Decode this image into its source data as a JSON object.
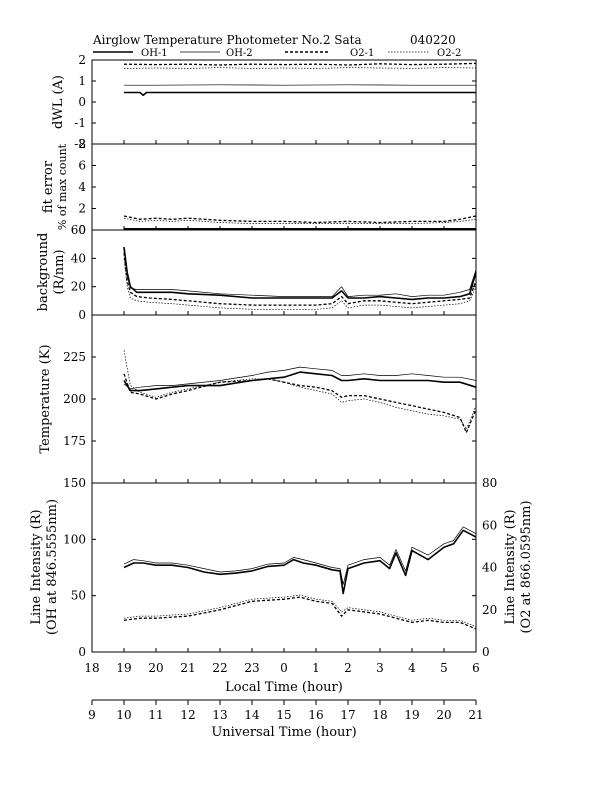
{
  "header": {
    "title": "Airglow Temperature Photometer No.2 Sata",
    "date_code": "040220"
  },
  "legend": [
    {
      "label": "OH-1",
      "style": "solid-bold"
    },
    {
      "label": "OH-2",
      "style": "solid-thin"
    },
    {
      "label": "O2-1",
      "style": "dashed-bold"
    },
    {
      "label": "O2-2",
      "style": "dotted-thin"
    }
  ],
  "chart_data": {
    "type": "line",
    "x_unit": "local time (hour), 19 = 19:00 LT, 24 = 0 LT",
    "x_axis_local": {
      "label": "Local Time (hour)",
      "range": [
        18,
        30
      ],
      "ticks": [
        "18",
        "19",
        "20",
        "21",
        "22",
        "23",
        "0",
        "1",
        "2",
        "3",
        "4",
        "5",
        "6"
      ]
    },
    "x_axis_universal": {
      "label": "Universal Time (hour)",
      "range": [
        9,
        21
      ],
      "ticks": [
        "9",
        "10",
        "11",
        "12",
        "13",
        "14",
        "15",
        "16",
        "17",
        "18",
        "19",
        "20",
        "21"
      ]
    },
    "panels": [
      {
        "id": "dwl",
        "ylabel": "dWL (A)",
        "ylim": [
          -2,
          2
        ],
        "yticks": [
          "2",
          "1",
          "0",
          "-1",
          "-2"
        ],
        "yticks_values": [
          2,
          1,
          0,
          -1,
          -2
        ],
        "series": [
          {
            "name": "OH-1",
            "x": [
              19,
              19.5,
              19.6,
              19.7,
              22,
              25,
              28,
              30
            ],
            "y": [
              0.45,
              0.45,
              0.32,
              0.45,
              0.45,
              0.45,
              0.45,
              0.45
            ]
          },
          {
            "name": "OH-2",
            "x": [
              19,
              20,
              22,
              24,
              26,
              28,
              30
            ],
            "y": [
              0.8,
              0.8,
              0.82,
              0.8,
              0.82,
              0.8,
              0.8
            ]
          },
          {
            "name": "O2-1",
            "x": [
              19,
              20,
              21,
              22,
              23,
              24,
              25,
              26,
              27,
              28,
              29,
              30
            ],
            "y": [
              1.8,
              1.78,
              1.8,
              1.76,
              1.8,
              1.78,
              1.8,
              1.76,
              1.82,
              1.78,
              1.8,
              1.84
            ]
          },
          {
            "name": "O2-2",
            "x": [
              19,
              20,
              21,
              22,
              23,
              24,
              25,
              26,
              27,
              28,
              29,
              30
            ],
            "y": [
              1.6,
              1.62,
              1.6,
              1.64,
              1.6,
              1.62,
              1.6,
              1.64,
              1.62,
              1.6,
              1.64,
              1.62
            ]
          }
        ]
      },
      {
        "id": "fit_error",
        "ylabel": "fit error",
        "ylabel2": "% of max count",
        "ylim": [
          0,
          8
        ],
        "yticks": [
          "8",
          "6",
          "4",
          "2",
          "0"
        ],
        "yticks_values": [
          8,
          6,
          4,
          2,
          0
        ],
        "series": [
          {
            "name": "OH-1",
            "x": [
              19,
              30
            ],
            "y": [
              0.1,
              0.1
            ]
          },
          {
            "name": "OH-2",
            "x": [
              19,
              30
            ],
            "y": [
              0.15,
              0.15
            ]
          },
          {
            "name": "O2-1",
            "x": [
              19,
              19.5,
              20,
              20.5,
              21,
              22,
              23,
              24,
              25,
              26,
              27,
              28,
              29,
              29.5,
              30
            ],
            "y": [
              1.3,
              1.0,
              1.1,
              1.0,
              1.1,
              0.9,
              0.8,
              0.8,
              0.7,
              0.8,
              0.7,
              0.8,
              0.8,
              1.0,
              1.3
            ]
          },
          {
            "name": "O2-2",
            "x": [
              19,
              19.5,
              20,
              20.5,
              21,
              22,
              23,
              24,
              25,
              26,
              27,
              28,
              29,
              29.5,
              30
            ],
            "y": [
              1.1,
              0.8,
              0.9,
              0.8,
              0.9,
              0.7,
              0.6,
              0.6,
              0.6,
              0.6,
              0.6,
              0.6,
              0.7,
              0.8,
              1.0
            ]
          }
        ]
      },
      {
        "id": "background",
        "ylabel": "background",
        "ylabel2": "(R/nm)",
        "ylim": [
          0,
          60
        ],
        "yticks": [
          "60",
          "40",
          "20",
          "0"
        ],
        "yticks_values": [
          60,
          40,
          20,
          0
        ],
        "series": [
          {
            "name": "OH-1",
            "x": [
              19,
              19.1,
              19.2,
              19.4,
              19.8,
              20.5,
              21,
              22,
              23,
              24,
              25,
              25.5,
              25.8,
              26,
              26.5,
              27,
              27.5,
              28,
              28.5,
              29,
              29.5,
              29.8,
              30
            ],
            "y": [
              48,
              30,
              20,
              16,
              16,
              16,
              15,
              14,
              12,
              12,
              12,
              12,
              17,
              12,
              12,
              13,
              12,
              11,
              12,
              12,
              13,
              15,
              30
            ]
          },
          {
            "name": "OH-2",
            "x": [
              19,
              19.1,
              19.2,
              19.4,
              19.8,
              20.5,
              21,
              22,
              23,
              24,
              25,
              25.5,
              25.8,
              26,
              26.5,
              27,
              27.5,
              28,
              28.5,
              29,
              29.5,
              29.8,
              30
            ],
            "y": [
              46,
              28,
              19,
              18,
              18,
              18,
              17,
              15,
              14,
              13,
              13,
              13,
              20,
              13,
              14,
              14,
              15,
              13,
              14,
              14,
              16,
              18,
              32
            ]
          },
          {
            "name": "O2-1",
            "x": [
              19,
              19.1,
              19.2,
              19.4,
              19.8,
              20.5,
              21,
              22,
              23,
              24,
              25,
              25.5,
              25.8,
              26,
              26.5,
              27,
              27.5,
              28,
              28.5,
              29,
              29.5,
              29.8,
              30
            ],
            "y": [
              44,
              24,
              16,
              13,
              12,
              11,
              10,
              8,
              7,
              7,
              7,
              8,
              13,
              8,
              10,
              10,
              9,
              8,
              9,
              10,
              11,
              12,
              24
            ]
          },
          {
            "name": "O2-2",
            "x": [
              19,
              19.1,
              19.2,
              19.4,
              19.8,
              20.5,
              21,
              22,
              23,
              24,
              25,
              25.5,
              25.8,
              26,
              26.5,
              27,
              27.5,
              28,
              28.5,
              29,
              29.5,
              29.8,
              30
            ],
            "y": [
              40,
              20,
              12,
              10,
              9,
              8,
              7,
              5,
              4,
              4,
              4,
              5,
              10,
              5,
              7,
              7,
              6,
              5,
              6,
              7,
              8,
              10,
              20
            ]
          }
        ]
      },
      {
        "id": "temperature",
        "ylabel": "Temperature (K)",
        "ylim": [
          150,
          250
        ],
        "yticks": [
          "225",
          "200",
          "175"
        ],
        "yticks_values": [
          225,
          200,
          175
        ],
        "series": [
          {
            "name": "OH-1",
            "x": [
              19,
              19.2,
              19.5,
              20,
              20.5,
              21,
              22,
              23,
              23.5,
              24,
              24.5,
              25,
              25.5,
              25.8,
              26,
              26.5,
              27,
              27.5,
              28,
              28.5,
              29,
              29.5,
              30
            ],
            "y": [
              211,
              205,
              205,
              206,
              207,
              208,
              208,
              211,
              212,
              213,
              216,
              215,
              214,
              211,
              211,
              212,
              211,
              211,
              211,
              211,
              210,
              210,
              207
            ]
          },
          {
            "name": "OH-2",
            "x": [
              19,
              19.2,
              19.5,
              20,
              20.5,
              21,
              22,
              23,
              23.5,
              24,
              24.5,
              25,
              25.5,
              25.8,
              26,
              26.5,
              27,
              27.5,
              28,
              28.5,
              29,
              29.5,
              30
            ],
            "y": [
              209,
              206,
              207,
              208,
              208,
              209,
              211,
              214,
              216,
              217,
              219,
              218,
              217,
              214,
              214,
              215,
              214,
              214,
              215,
              214,
              213,
              213,
              211
            ]
          },
          {
            "name": "O2-1",
            "x": [
              19,
              19.2,
              19.5,
              20,
              20.5,
              21,
              22,
              23,
              23.5,
              24,
              24.5,
              25,
              25.5,
              25.8,
              26,
              26.5,
              27,
              27.5,
              28,
              28.5,
              29,
              29.5,
              29.7,
              30
            ],
            "y": [
              215,
              204,
              203,
              200,
              203,
              205,
              210,
              211,
              212,
              210,
              208,
              207,
              205,
              201,
              202,
              202,
              200,
              198,
              196,
              194,
              192,
              189,
              180,
              194
            ]
          },
          {
            "name": "O2-2",
            "x": [
              19,
              19.2,
              19.5,
              20,
              20.5,
              21,
              22,
              23,
              23.5,
              24,
              24.5,
              25,
              25.5,
              25.8,
              26,
              26.5,
              27,
              27.5,
              28,
              28.5,
              29,
              29.5,
              29.7,
              30
            ],
            "y": [
              229,
              208,
              204,
              201,
              204,
              206,
              210,
              212,
              212,
              210,
              207,
              205,
              203,
              198,
              199,
              200,
              198,
              195,
              193,
              191,
              190,
              188,
              182,
              196
            ]
          }
        ]
      },
      {
        "id": "line_intensity",
        "ylabel": "Line Intensity (R)",
        "ylabel2": "(OH at 846.5555nm)",
        "ylabel_right": "Line Intensity (R)",
        "ylabel2_right": "(O2 at 866.0595nm)",
        "ylim": [
          0,
          150
        ],
        "ylim_right": [
          0,
          80
        ],
        "yticks": [
          "150",
          "100",
          "50",
          "0"
        ],
        "yticks_values": [
          150,
          100,
          50,
          0
        ],
        "yticks_right": [
          "80",
          "60",
          "40",
          "20",
          "0"
        ],
        "yticks_right_values": [
          80,
          60,
          40,
          20,
          0
        ],
        "series": [
          {
            "name": "OH-1",
            "axis": "left",
            "x": [
              19,
              19.3,
              19.6,
              20,
              20.5,
              21,
              21.5,
              22,
              22.5,
              23,
              23.5,
              24,
              24.3,
              24.6,
              25,
              25.5,
              25.75,
              25.85,
              26,
              26.5,
              27,
              27.3,
              27.5,
              27.8,
              28,
              28.5,
              29,
              29.3,
              29.6,
              30
            ],
            "y": [
              75,
              79,
              79,
              77,
              77,
              75,
              71,
              69,
              70,
              72,
              76,
              77,
              82,
              79,
              77,
              73,
              72,
              52,
              74,
              79,
              81,
              74,
              88,
              68,
              90,
              82,
              93,
              96,
              108,
              102
            ]
          },
          {
            "name": "OH-2",
            "axis": "left",
            "x": [
              19,
              19.3,
              19.6,
              20,
              20.5,
              21,
              21.5,
              22,
              22.5,
              23,
              23.5,
              24,
              24.3,
              24.6,
              25,
              25.5,
              25.75,
              25.85,
              26,
              26.5,
              27,
              27.3,
              27.5,
              27.8,
              28,
              28.5,
              29,
              29.3,
              29.6,
              30
            ],
            "y": [
              78,
              82,
              81,
              79,
              79,
              77,
              74,
              71,
              72,
              74,
              78,
              79,
              84,
              82,
              79,
              75,
              74,
              60,
              77,
              82,
              84,
              77,
              91,
              72,
              93,
              86,
              96,
              99,
              111,
              105
            ]
          },
          {
            "name": "O2-1",
            "axis": "right",
            "x": [
              19,
              19.5,
              20,
              21,
              22,
              23,
              24,
              24.5,
              25,
              25.5,
              25.8,
              26,
              26.5,
              27,
              27.5,
              28,
              28.5,
              29,
              29.5,
              30
            ],
            "y": [
              15,
              16,
              16,
              17,
              20,
              24,
              25,
              26,
              24,
              23,
              17,
              20,
              19,
              18,
              16,
              14,
              15,
              14,
              14,
              11
            ]
          },
          {
            "name": "O2-2",
            "axis": "right",
            "x": [
              19,
              19.5,
              20,
              21,
              22,
              23,
              24,
              24.5,
              25,
              25.5,
              25.8,
              26,
              26.5,
              27,
              27.5,
              28,
              28.5,
              29,
              29.5,
              30
            ],
            "y": [
              16,
              17,
              17,
              18,
              21,
              25,
              26,
              27,
              25,
              24,
              19,
              21,
              20,
              19,
              17,
              15,
              16,
              15,
              15,
              12
            ]
          }
        ]
      }
    ]
  }
}
